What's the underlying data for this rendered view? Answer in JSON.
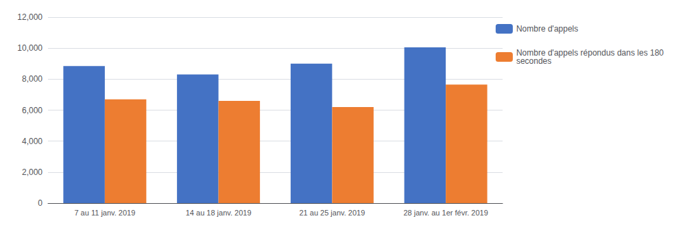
{
  "chart_data": {
    "type": "bar",
    "categories": [
      "7 au 11 janv. 2019",
      "14 au 18 janv. 2019",
      "21 au 25 janv. 2019",
      "28 janv. au 1er févr. 2019"
    ],
    "series": [
      {
        "name": "Nombre d'appels",
        "color": "#4472C4",
        "values": [
          8850,
          8300,
          9000,
          10050
        ]
      },
      {
        "name": "Nombre d'appels répondus dans les 180\nsecondes",
        "color": "#ED7D31",
        "values": [
          6700,
          6600,
          6200,
          7650
        ]
      }
    ],
    "ylim": [
      0,
      12000
    ],
    "yticks": [
      0,
      {
        "value": 2000,
        "label": "2,000"
      },
      {
        "value": 4000,
        "label": "4,000"
      },
      {
        "value": 6000,
        "label": "6,000"
      },
      {
        "value": 8000,
        "label": "8,000"
      },
      {
        "value": 10000,
        "label": "10,000"
      },
      {
        "value": 12000,
        "label": "12,000"
      }
    ],
    "grid": true,
    "legend": "right"
  }
}
